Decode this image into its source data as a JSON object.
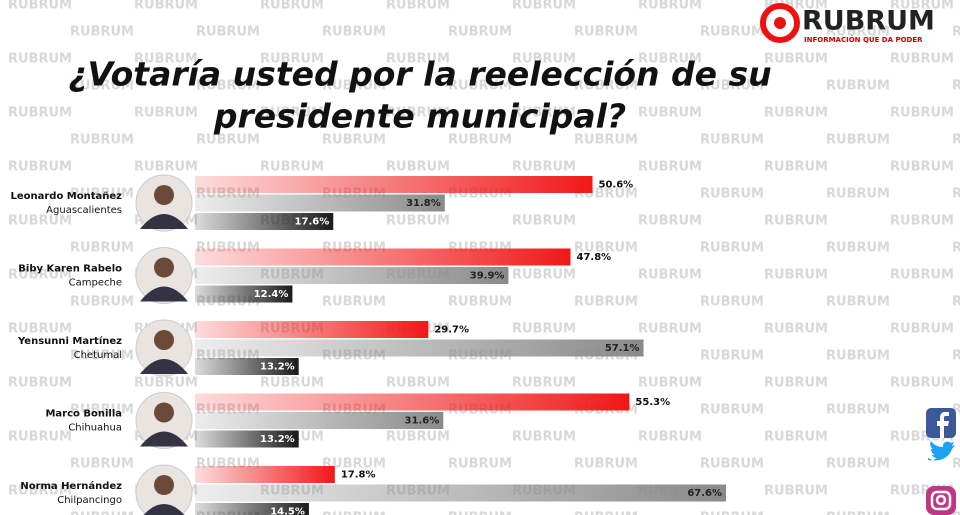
{
  "brand": {
    "name": "RUBRUM",
    "tagline": "INFORMACIÓN QUE DA PODER"
  },
  "chart_data": {
    "type": "bar",
    "orientation": "horizontal",
    "title": [
      "¿Votaría usted por la reelección de su",
      "presidente municipal?"
    ],
    "categories": [
      "Leonardo Montañez",
      "Biby Karen Rabelo",
      "Yensunni Martínez",
      "Marco Bonilla",
      "Norma Hernández"
    ],
    "locations": [
      "Aguascalientes",
      "Campeche",
      "Chetumal",
      "Chihuahua",
      "Chilpancingo"
    ],
    "xlim": [
      0,
      97
    ],
    "series": [
      {
        "color": "#f01818",
        "values": [
          50.6,
          47.8,
          29.7,
          55.3,
          17.8
        ],
        "value_labels": [
          "50.6%",
          "47.8%",
          "29.7%",
          "55.3%",
          "17.8%"
        ]
      },
      {
        "color": "#8a8a8a",
        "values": [
          31.8,
          39.9,
          57.1,
          31.6,
          67.6
        ],
        "value_labels": [
          "31.8%",
          "39.9%",
          "57.1%",
          "31.6%",
          "67.6%"
        ]
      },
      {
        "color": "#1a1a1a",
        "values": [
          17.6,
          12.4,
          13.2,
          13.2,
          14.5
        ],
        "value_labels": [
          "17.6%",
          "12.4%",
          "13.2%",
          "13.2%",
          "14.5%"
        ]
      }
    ]
  }
}
